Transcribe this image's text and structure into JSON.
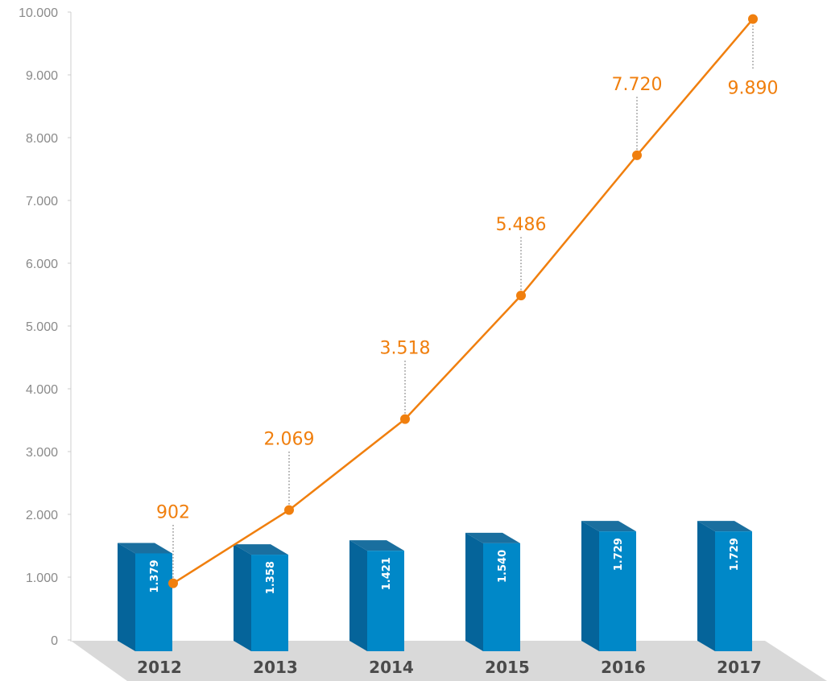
{
  "chart_data": {
    "type": "bar",
    "categories": [
      "2012",
      "2013",
      "2014",
      "2015",
      "2016",
      "2017"
    ],
    "ylim": [
      0,
      10000
    ],
    "yticks": [
      {
        "value": 0,
        "label": "0"
      },
      {
        "value": 1000,
        "label": "1.000"
      },
      {
        "value": 2000,
        "label": "2.000"
      },
      {
        "value": 3000,
        "label": "3.000"
      },
      {
        "value": 4000,
        "label": "4.000"
      },
      {
        "value": 5000,
        "label": "5.000"
      },
      {
        "value": 6000,
        "label": "6.000"
      },
      {
        "value": 7000,
        "label": "7.000"
      },
      {
        "value": 8000,
        "label": "8.000"
      },
      {
        "value": 9000,
        "label": "9.000"
      },
      {
        "value": 10000,
        "label": "10.000"
      }
    ],
    "series": [
      {
        "type": "bar",
        "values": [
          1379,
          1358,
          1421,
          1540,
          1729,
          1729
        ],
        "labels": [
          "1.379",
          "1.358",
          "1.421",
          "1.540",
          "1.729",
          "1.729"
        ],
        "color": "#0088c8"
      },
      {
        "type": "line",
        "values": [
          902,
          2069,
          3518,
          5486,
          7720,
          9890
        ],
        "labels": [
          "902",
          "2.069",
          "3.518",
          "5.486",
          "7.720",
          "9.890"
        ],
        "color": "#f07f0e"
      }
    ],
    "grid": false,
    "legend": "none",
    "colors": {
      "bar_front": "#0088c8",
      "bar_side": "#05649a",
      "bar_top": "#1a6f9f",
      "floor": "#d9d9d9",
      "axis": "#cccccc",
      "line": "#f07f0e"
    }
  }
}
